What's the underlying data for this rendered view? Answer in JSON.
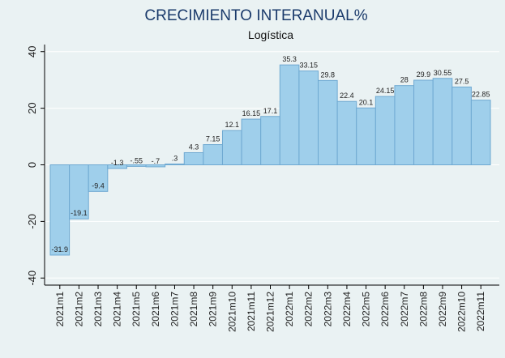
{
  "chart_data": {
    "type": "bar",
    "title": "CRECIMIENTO INTERANUAL%",
    "subtitle": "Logística",
    "categories": [
      "2021m1",
      "2021m2",
      "2021m3",
      "2021m4",
      "2021m5",
      "2021m6",
      "2021m7",
      "2021m8",
      "2021m9",
      "2021m10",
      "2021m11",
      "2021m12",
      "2022m1",
      "2022m2",
      "2022m3",
      "2022m4",
      "2022m5",
      "2022m6",
      "2022m7",
      "2022m8",
      "2022m9",
      "2022m10",
      "2022m11"
    ],
    "values": [
      -31.9,
      -19.1,
      -9.4,
      -1.3,
      -0.55,
      -0.7,
      0.3,
      4.3,
      7.15,
      12.1,
      16.15,
      17.1,
      35.3,
      33.15,
      29.8,
      22.4,
      20.1,
      24.15,
      28,
      29.9,
      30.55,
      27.5,
      22.85
    ],
    "value_labels": [
      "-31.9",
      "-19.1",
      "-9.4",
      "-1.3",
      "-.55",
      "-.7",
      ".3",
      "4.3",
      "7.15",
      "12.1",
      "16.15",
      "17.1",
      "35.3",
      "33.15",
      "29.8",
      "22.4",
      "20.1",
      "24.15",
      "28",
      "29.9",
      "30.55",
      "27.5",
      "22.85"
    ],
    "color": "#9fcfeb",
    "ylim": [
      -42.5,
      42.5
    ],
    "yticks": [
      -40,
      -20,
      0,
      20,
      40
    ],
    "grid": true
  }
}
